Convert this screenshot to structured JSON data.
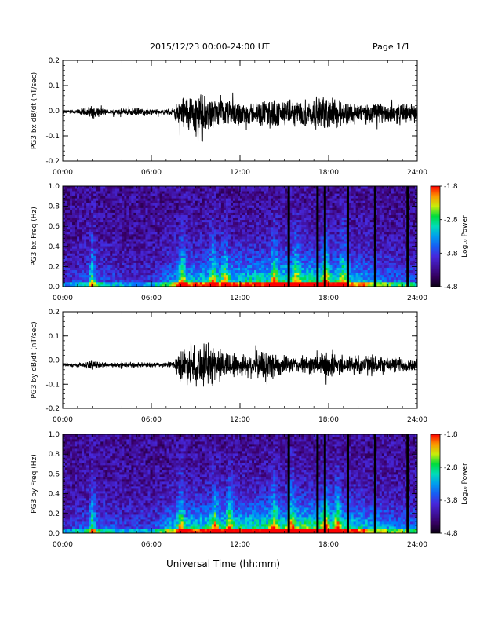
{
  "header": {
    "title": "2015/12/23  00:00-24:00 UT",
    "page": "Page 1/1"
  },
  "footer": {
    "xlabel": "Universal Time (hh:mm)"
  },
  "chart_data": [
    {
      "type": "line",
      "ylabel": "PG3 bx dB/dt (nT/sec)",
      "xlim": [
        0,
        24
      ],
      "ylim": [
        -0.2,
        0.2
      ],
      "xticks": [
        "00:00",
        "06:00",
        "12:00",
        "18:00",
        "24:00"
      ],
      "yticks": [
        "-0.2",
        "-0.1",
        "0.0",
        "0.1",
        "0.2"
      ],
      "series_envelope": {
        "hours": [
          0,
          1,
          2,
          3,
          4,
          5,
          6,
          7,
          7.5,
          8,
          9,
          10,
          11,
          12,
          13,
          14,
          15,
          16,
          17,
          18,
          19,
          20,
          21,
          22,
          23,
          24
        ],
        "amplitude": [
          0.01,
          0.012,
          0.03,
          0.012,
          0.015,
          0.02,
          0.015,
          0.012,
          0.02,
          0.08,
          0.1,
          0.07,
          0.06,
          0.06,
          0.05,
          0.07,
          0.06,
          0.06,
          0.07,
          0.08,
          0.06,
          0.05,
          0.045,
          0.05,
          0.05,
          0.04
        ],
        "baseline": [
          -0.005,
          -0.005,
          -0.005,
          -0.005,
          -0.005,
          -0.005,
          -0.005,
          -0.005,
          -0.005,
          -0.01,
          -0.01,
          -0.01,
          -0.01,
          -0.01,
          -0.01,
          -0.01,
          -0.01,
          -0.01,
          -0.01,
          -0.01,
          -0.01,
          -0.01,
          -0.01,
          -0.01,
          -0.01,
          -0.01
        ]
      }
    },
    {
      "type": "heatmap",
      "ylabel": "PG3 bx Freq (Hz)",
      "xlim": [
        0,
        24
      ],
      "ylim": [
        0,
        1
      ],
      "xticks": [
        "00:00",
        "06:00",
        "12:00",
        "18:00",
        "24:00"
      ],
      "yticks": [
        "0.0",
        "0.2",
        "0.4",
        "0.6",
        "0.8",
        "1.0"
      ],
      "colorbar": {
        "label": "Log₁₀ Power",
        "range": [
          -4.8,
          -1.8
        ],
        "ticks": [
          "-1.8",
          "-2.8",
          "-3.8",
          "-4.8"
        ]
      },
      "gap_hours": [
        15.3,
        17.25,
        17.75,
        19.3,
        21.15,
        23.35
      ],
      "bright_hours": [
        2.0,
        8.1,
        10.2,
        11.0,
        14.3,
        15.8,
        17.8,
        19.0
      ],
      "intensity_hours": [
        0,
        2,
        4,
        6,
        7,
        8,
        10,
        12,
        14,
        16,
        18,
        20,
        22,
        24
      ],
      "intensity_levels": [
        0.1,
        0.25,
        0.15,
        0.15,
        0.3,
        0.45,
        0.5,
        0.5,
        0.55,
        0.6,
        0.6,
        0.45,
        0.3,
        0.25
      ]
    },
    {
      "type": "line",
      "ylabel": "PG3 by dB/dt (nT/sec)",
      "xlim": [
        0,
        24
      ],
      "ylim": [
        -0.2,
        0.2
      ],
      "xticks": [
        "00:00",
        "06:00",
        "12:00",
        "18:00",
        "24:00"
      ],
      "yticks": [
        "-0.2",
        "-0.1",
        "0.0",
        "0.1",
        "0.2"
      ],
      "series_envelope": {
        "hours": [
          0,
          1,
          2,
          3,
          4,
          5,
          6,
          7,
          7.5,
          8,
          9,
          10,
          11,
          12,
          13,
          14,
          15,
          16,
          17,
          18,
          19,
          20,
          21,
          22,
          23,
          24
        ],
        "amplitude": [
          0.008,
          0.01,
          0.02,
          0.012,
          0.012,
          0.012,
          0.012,
          0.012,
          0.02,
          0.08,
          0.1,
          0.11,
          0.07,
          0.06,
          0.06,
          0.08,
          0.04,
          0.04,
          0.05,
          0.07,
          0.05,
          0.05,
          0.05,
          0.04,
          0.04,
          0.03
        ],
        "baseline": [
          -0.02,
          -0.02,
          -0.02,
          -0.02,
          -0.02,
          -0.02,
          -0.02,
          -0.02,
          -0.02,
          -0.02,
          -0.02,
          -0.02,
          -0.02,
          -0.02,
          -0.02,
          -0.02,
          -0.02,
          -0.02,
          -0.02,
          -0.02,
          -0.02,
          -0.02,
          -0.02,
          -0.02,
          -0.02,
          -0.02
        ]
      }
    },
    {
      "type": "heatmap",
      "ylabel": "PG3 by Freq (Hz)",
      "xlim": [
        0,
        24
      ],
      "ylim": [
        0,
        1
      ],
      "xticks": [
        "00:00",
        "06:00",
        "12:00",
        "18:00",
        "24:00"
      ],
      "yticks": [
        "0.0",
        "0.2",
        "0.4",
        "0.6",
        "0.8",
        "1.0"
      ],
      "colorbar": {
        "label": "Log₁₀ Power",
        "range": [
          -4.8,
          -1.8
        ],
        "ticks": [
          "-1.8",
          "-2.8",
          "-3.8",
          "-4.8"
        ]
      },
      "gap_hours": [
        15.3,
        17.25,
        17.75,
        19.3,
        21.15,
        23.35
      ],
      "bright_hours": [
        2.0,
        8.0,
        10.3,
        11.3,
        14.3,
        15.5,
        17.8,
        18.6
      ],
      "intensity_hours": [
        0,
        2,
        4,
        6,
        7,
        8,
        10,
        12,
        14,
        16,
        18,
        20,
        22,
        24
      ],
      "intensity_levels": [
        0.12,
        0.28,
        0.18,
        0.18,
        0.35,
        0.5,
        0.55,
        0.55,
        0.6,
        0.65,
        0.65,
        0.5,
        0.35,
        0.28
      ]
    }
  ]
}
